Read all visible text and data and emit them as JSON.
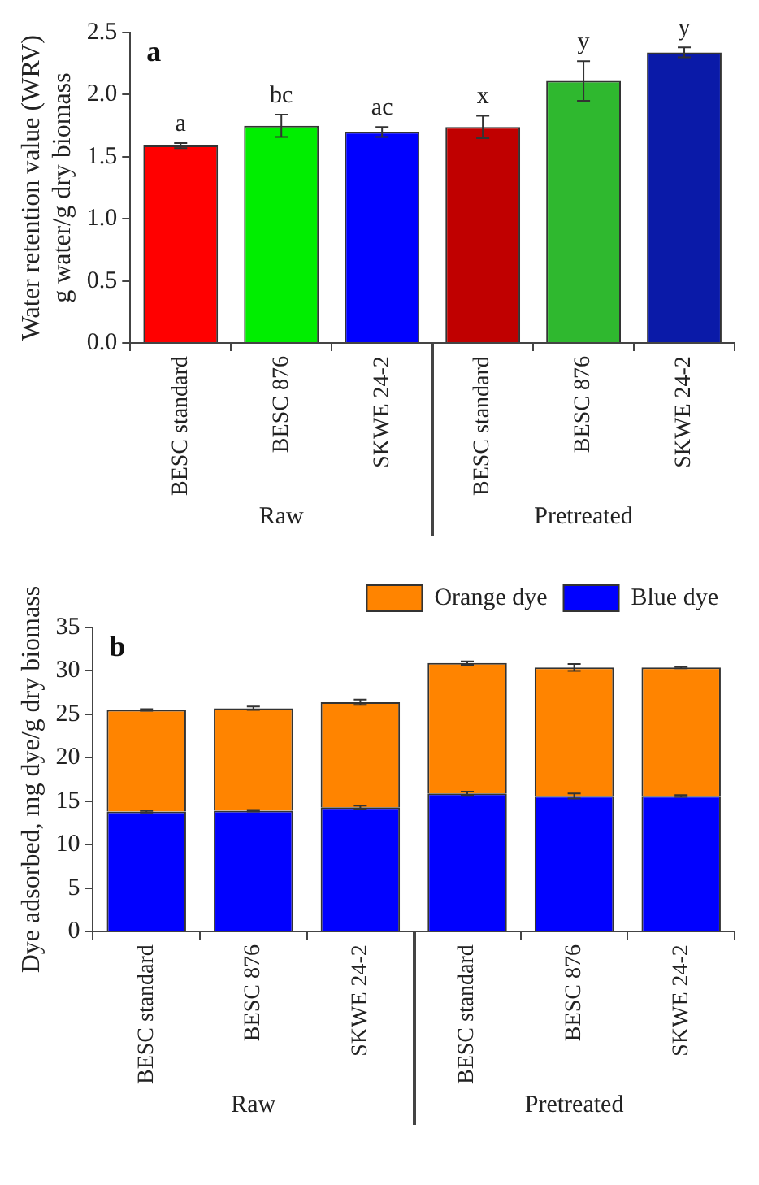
{
  "chart_data": [
    {
      "type": "bar",
      "title": "a",
      "ylabel": "Water retention value (WRV)\ng water/g dry biomass",
      "categories": [
        "BESC standard",
        "BESC 876",
        "SKWE 24-2",
        "BESC standard",
        "BESC 876",
        "SKWE 24-2"
      ],
      "values": [
        1.59,
        1.75,
        1.7,
        1.74,
        2.11,
        2.34
      ],
      "errors": [
        0.02,
        0.09,
        0.04,
        0.09,
        0.16,
        0.04
      ],
      "value_labels": [
        "a",
        "bc",
        "ac",
        "x",
        "y",
        "y"
      ],
      "colors": [
        "#ff0000",
        "#00ee00",
        "#0000ff",
        "#c00000",
        "#2fb82f",
        "#0a1aa8"
      ],
      "ylim": [
        0,
        2.5
      ],
      "yticks": [
        {
          "value": 0,
          "label": "0.0"
        },
        {
          "value": 0.5,
          "label": "0.5"
        },
        {
          "value": 1,
          "label": "1.0"
        },
        {
          "value": 1.5,
          "label": "1.5"
        },
        {
          "value": 2,
          "label": "2.0"
        },
        {
          "value": 2.5,
          "label": "2.5"
        }
      ],
      "annotations": [
        "Raw",
        "Pretreated"
      ],
      "grid": false,
      "legend": false
    },
    {
      "type": "bar",
      "title": "b",
      "ylabel": "Dye adsorbed, mg dye/g dry biomass",
      "stacked": true,
      "categories": [
        "BESC standard",
        "BESC 876",
        "SKWE 24-2",
        "BESC standard",
        "BESC 876",
        "SKWE 24-2"
      ],
      "series": [
        {
          "name": "Blue dye",
          "color": "#0000ff",
          "values": [
            13.8,
            13.9,
            14.3,
            15.9,
            15.6,
            15.6
          ],
          "errors": [
            0.1,
            0.1,
            0.2,
            0.2,
            0.3,
            0.1
          ]
        },
        {
          "name": "Orange dye",
          "color": "#ff8400",
          "values": [
            11.7,
            11.8,
            12.1,
            15.0,
            14.8,
            14.8
          ],
          "errors": [
            0.1,
            0.2,
            0.3,
            0.2,
            0.4,
            0.1
          ]
        }
      ],
      "ylim": [
        0,
        35
      ],
      "yticks": [
        0,
        5,
        10,
        15,
        20,
        25,
        30,
        35
      ],
      "annotations": [
        "Raw",
        "Pretreated"
      ],
      "grid": false,
      "legend": "top right"
    }
  ]
}
